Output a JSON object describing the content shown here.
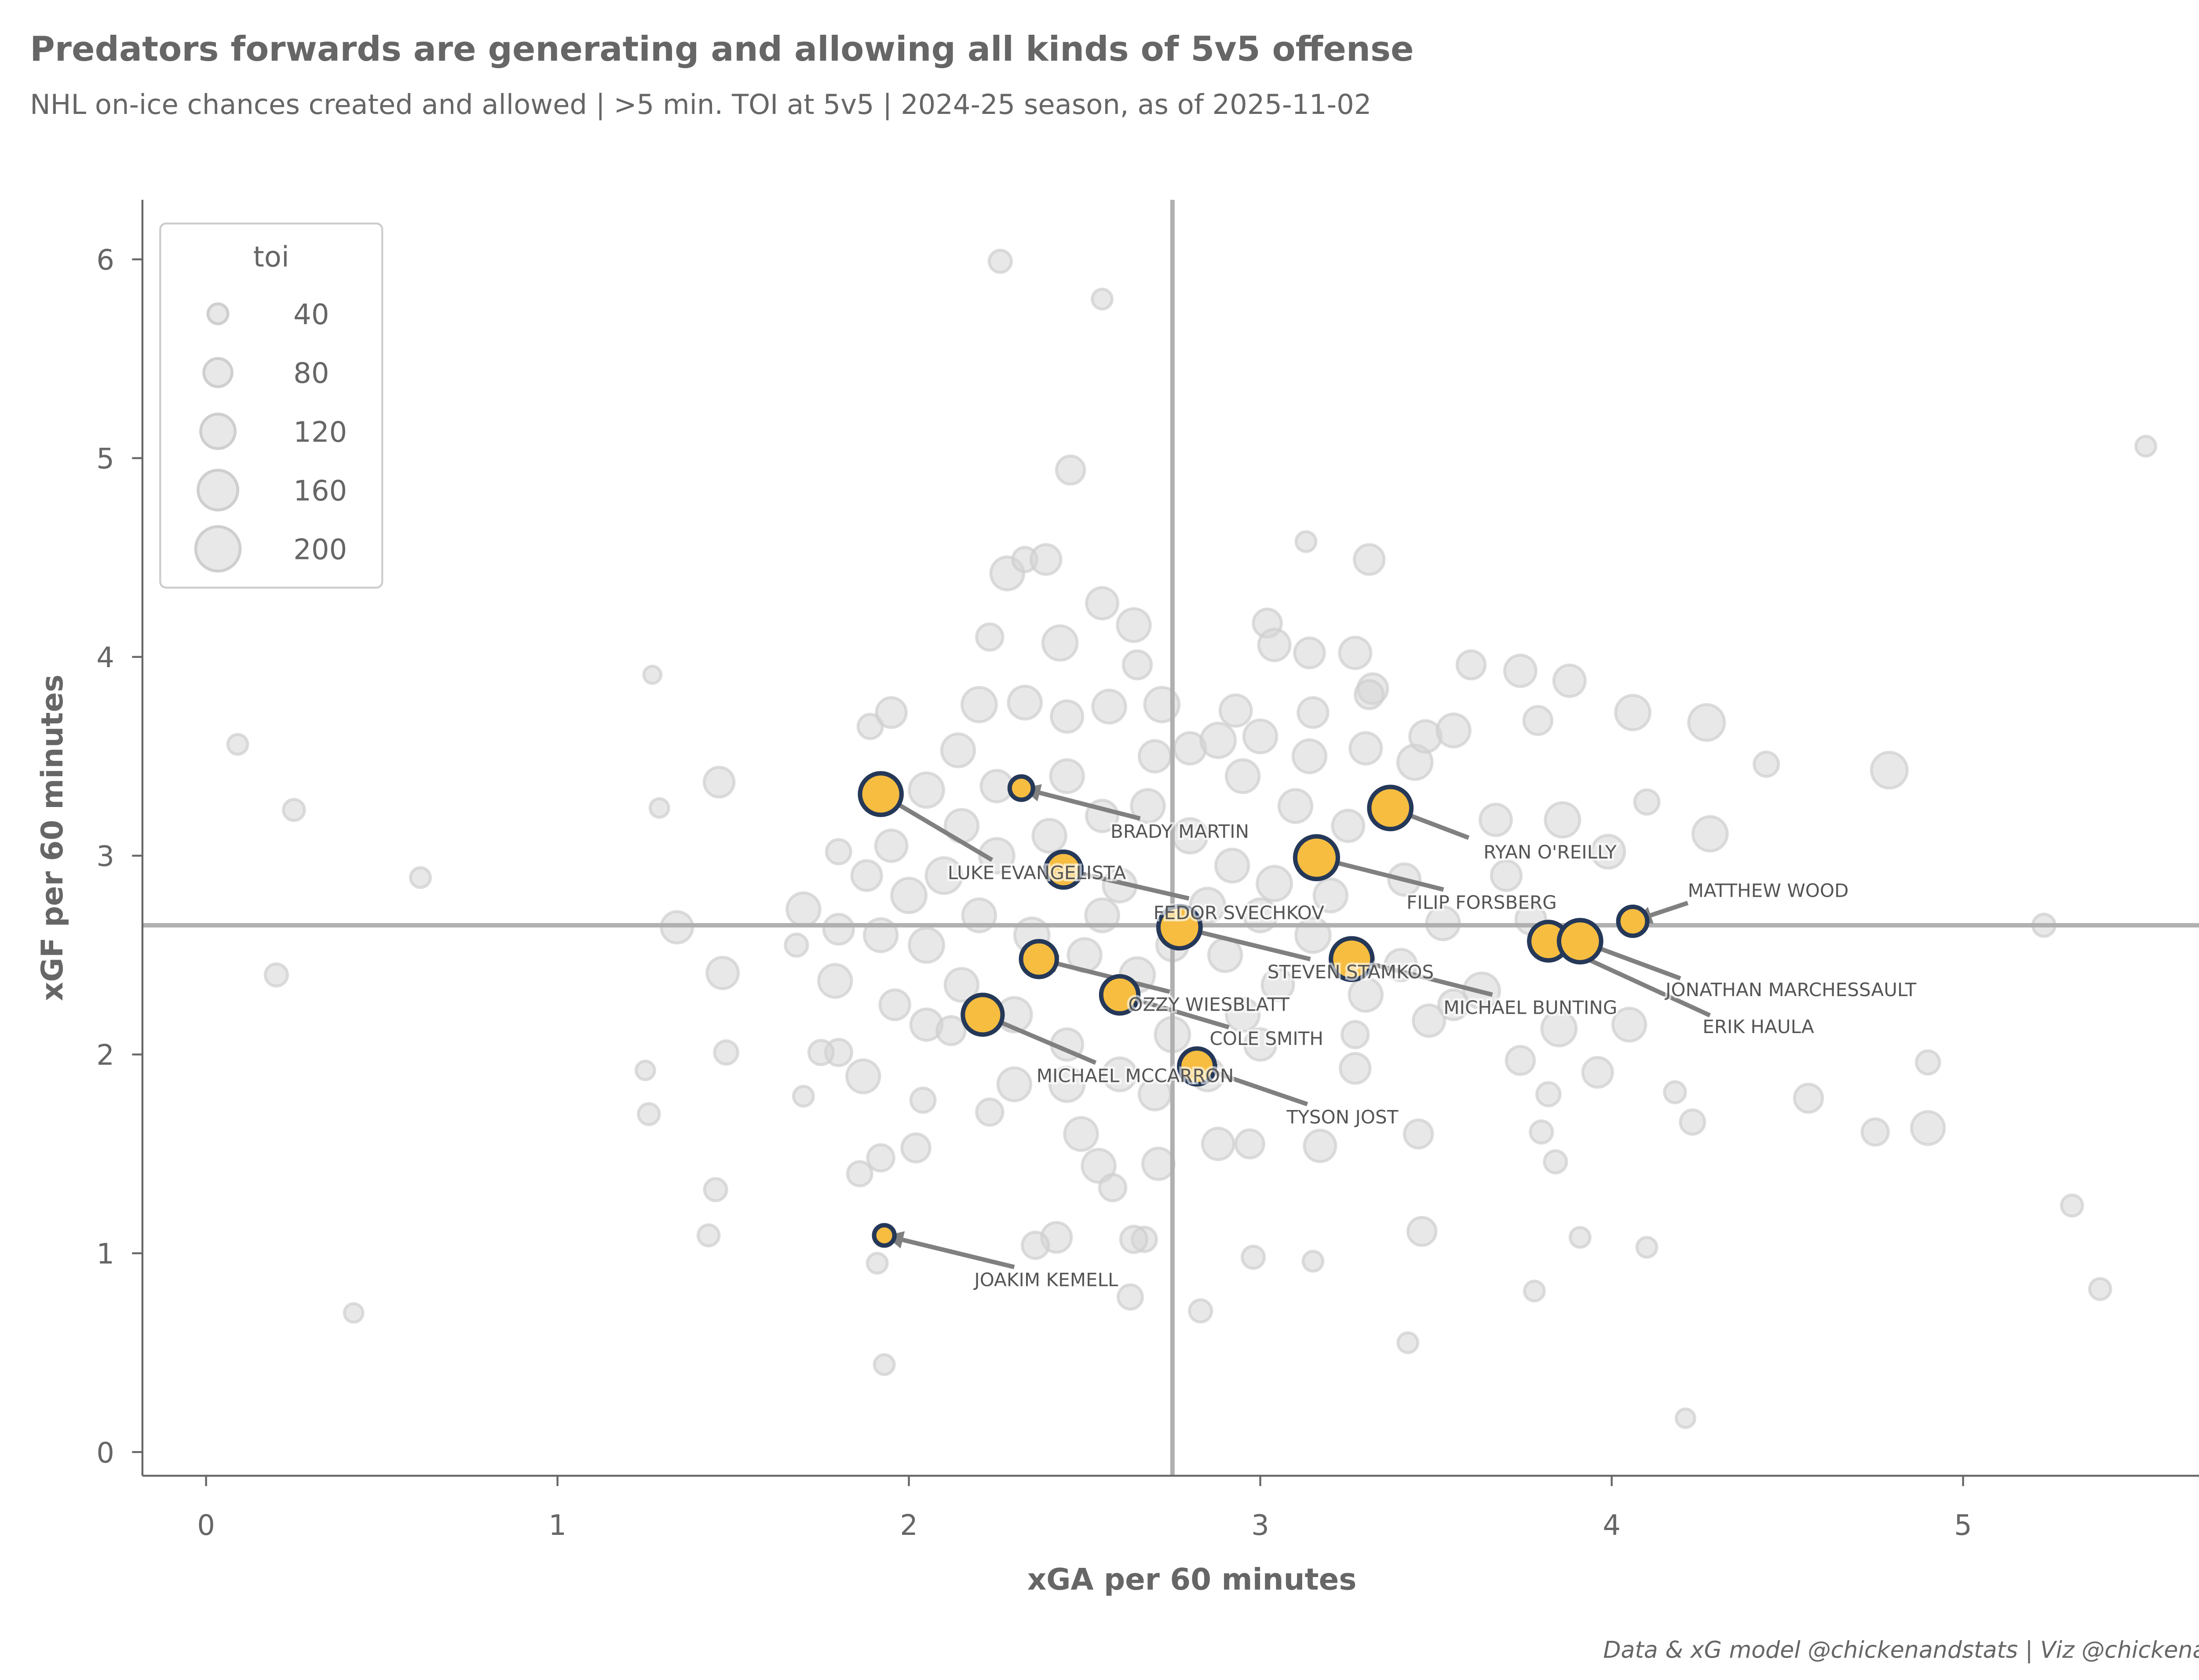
{
  "chart_data": {
    "type": "scatter",
    "title": "Predators forwards are generating and allowing all kinds of 5v5 offense",
    "subtitle": "NHL on-ice chances created and allowed | >5 min. TOI at 5v5 | 2024-25 season, as of 2025-11-02",
    "xlabel": "xGA per 60 minutes",
    "ylabel": "xGF per 60 minutes",
    "xlim": [
      -0.18,
      5.8
    ],
    "ylim": [
      -0.12,
      6.28
    ],
    "xticks": [
      "0",
      "1",
      "2",
      "3",
      "4",
      "5"
    ],
    "yticks": [
      "0",
      "1",
      "2",
      "3",
      "4",
      "5",
      "6"
    ],
    "median_x": 2.75,
    "median_y": 2.65,
    "legend": {
      "title": "toi",
      "placement": "top-left",
      "sizes": [
        "40",
        "80",
        "120",
        "160",
        "200"
      ]
    },
    "footer": "Data & xG model @chickenandstats | Viz @chickenandstats",
    "colors": {
      "highlight": "#f6bd41",
      "highlight_edge": "#253858",
      "other": "#d6d6d6",
      "text": "#666666",
      "arrow": "#808080"
    },
    "highlighted": [
      {
        "name": "LUKE EVANGELISTA",
        "xga": 1.92,
        "xgf": 3.31,
        "toi": 175
      },
      {
        "name": "BRADY MARTIN",
        "xga": 2.32,
        "xgf": 3.34,
        "toi": 55
      },
      {
        "name": "RYAN O'REILLY",
        "xga": 3.37,
        "xgf": 3.24,
        "toi": 180
      },
      {
        "name": "FILIP FORSBERG",
        "xga": 3.16,
        "xgf": 2.99,
        "toi": 185
      },
      {
        "name": "FEDOR SVECHKOV",
        "xga": 2.44,
        "xgf": 2.93,
        "toi": 130
      },
      {
        "name": "MATTHEW WOOD",
        "xga": 4.06,
        "xgf": 2.67,
        "toi": 85
      },
      {
        "name": "ERIK HAULA",
        "xga": 3.82,
        "xgf": 2.57,
        "toi": 150
      },
      {
        "name": "JONATHAN MARCHESSAULT",
        "xga": 3.91,
        "xgf": 2.57,
        "toi": 180
      },
      {
        "name": "STEVEN STAMKOS",
        "xga": 2.77,
        "xgf": 2.64,
        "toi": 180
      },
      {
        "name": "MICHAEL BUNTING",
        "xga": 3.26,
        "xgf": 2.48,
        "toi": 175
      },
      {
        "name": "OZZY WIESBLATT",
        "xga": 2.37,
        "xgf": 2.48,
        "toi": 130
      },
      {
        "name": "COLE SMITH",
        "xga": 2.6,
        "xgf": 2.3,
        "toi": 140
      },
      {
        "name": "MICHAEL MCCARRON",
        "xga": 2.21,
        "xgf": 2.2,
        "toi": 160
      },
      {
        "name": "TYSON JOST",
        "xga": 2.82,
        "xgf": 1.94,
        "toi": 130
      },
      {
        "name": "JOAKIM KEMELL",
        "xga": 1.93,
        "xgf": 1.09,
        "toi": 42
      }
    ],
    "others": [
      [
        0.09,
        3.56,
        40
      ],
      [
        0.25,
        3.23,
        45
      ],
      [
        0.2,
        2.4,
        50
      ],
      [
        0.61,
        2.89,
        40
      ],
      [
        0.42,
        0.7,
        35
      ],
      [
        1.27,
        3.91,
        30
      ],
      [
        1.29,
        3.24,
        35
      ],
      [
        1.46,
        3.37,
        90
      ],
      [
        1.34,
        2.64,
        100
      ],
      [
        1.47,
        2.41,
        100
      ],
      [
        1.25,
        1.92,
        35
      ],
      [
        1.26,
        1.7,
        45
      ],
      [
        1.48,
        2.01,
        55
      ],
      [
        1.45,
        1.32,
        50
      ],
      [
        1.43,
        1.09,
        45
      ],
      [
        1.93,
        0.44,
        40
      ],
      [
        1.91,
        0.95,
        40
      ],
      [
        2.26,
        5.99,
        50
      ],
      [
        2.55,
        5.8,
        40
      ],
      [
        2.46,
        4.94,
        80
      ],
      [
        2.28,
        4.42,
        110
      ],
      [
        2.33,
        4.49,
        60
      ],
      [
        2.39,
        4.49,
        90
      ],
      [
        2.55,
        4.27,
        100
      ],
      [
        2.64,
        4.16,
        110
      ],
      [
        2.23,
        4.1,
        70
      ],
      [
        2.43,
        4.07,
        120
      ],
      [
        2.65,
        3.96,
        80
      ],
      [
        3.13,
        4.58,
        40
      ],
      [
        3.31,
        4.49,
        90
      ],
      [
        3.02,
        4.17,
        80
      ],
      [
        3.04,
        4.06,
        100
      ],
      [
        3.14,
        4.02,
        90
      ],
      [
        3.27,
        4.02,
        100
      ],
      [
        3.32,
        3.84,
        90
      ],
      [
        3.31,
        3.81,
        80
      ],
      [
        3.6,
        3.96,
        80
      ],
      [
        3.74,
        3.93,
        100
      ],
      [
        3.88,
        3.88,
        100
      ],
      [
        3.79,
        3.68,
        80
      ],
      [
        4.06,
        3.72,
        120
      ],
      [
        4.27,
        3.67,
        130
      ],
      [
        4.44,
        3.46,
        60
      ],
      [
        4.79,
        3.43,
        130
      ],
      [
        4.1,
        3.27,
        60
      ],
      [
        4.28,
        3.11,
        120
      ],
      [
        5.52,
        5.06,
        40
      ],
      [
        5.23,
        2.65,
        50
      ],
      [
        4.9,
        1.96,
        55
      ],
      [
        4.9,
        1.63,
        110
      ],
      [
        4.75,
        1.61,
        70
      ],
      [
        4.56,
        1.78,
        80
      ],
      [
        4.23,
        1.66,
        60
      ],
      [
        4.18,
        1.81,
        45
      ],
      [
        4.1,
        1.03,
        40
      ],
      [
        3.91,
        1.08,
        40
      ],
      [
        3.78,
        0.81,
        40
      ],
      [
        3.42,
        0.55,
        40
      ],
      [
        4.21,
        0.17,
        35
      ],
      [
        5.31,
        1.24,
        45
      ],
      [
        5.39,
        0.82,
        45
      ],
      [
        3.46,
        1.11,
        80
      ],
      [
        3.15,
        0.96,
        40
      ],
      [
        2.98,
        0.98,
        50
      ],
      [
        2.83,
        0.71,
        50
      ],
      [
        2.63,
        0.78,
        60
      ],
      [
        2.67,
        1.07,
        60
      ],
      [
        2.64,
        1.07,
        70
      ],
      [
        2.42,
        1.08,
        90
      ],
      [
        2.36,
        1.04,
        70
      ],
      [
        3.63,
        2.32,
        130
      ],
      [
        3.85,
        2.13,
        120
      ],
      [
        4.05,
        2.15,
        110
      ],
      [
        3.55,
        2.25,
        90
      ],
      [
        3.48,
        2.17,
        100
      ],
      [
        3.74,
        1.97,
        80
      ],
      [
        3.96,
        1.91,
        90
      ],
      [
        3.84,
        1.46,
        50
      ],
      [
        3.8,
        1.61,
        50
      ],
      [
        3.82,
        1.8,
        55
      ],
      [
        3.45,
        1.6,
        80
      ],
      [
        3.27,
        2.1,
        70
      ],
      [
        3.27,
        1.93,
        90
      ],
      [
        3.17,
        1.54,
        100
      ],
      [
        2.97,
        1.55,
        80
      ],
      [
        2.88,
        1.55,
        100
      ],
      [
        2.71,
        1.45,
        100
      ],
      [
        2.54,
        1.44,
        110
      ],
      [
        2.58,
        1.33,
        70
      ],
      [
        2.49,
        1.6,
        110
      ],
      [
        2.23,
        1.71,
        70
      ],
      [
        2.02,
        1.53,
        80
      ],
      [
        1.92,
        1.48,
        70
      ],
      [
        1.86,
        1.4,
        60
      ],
      [
        2.04,
        1.77,
        60
      ],
      [
        1.7,
        1.79,
        40
      ],
      [
        1.8,
        2.01,
        70
      ],
      [
        1.87,
        1.89,
        110
      ],
      [
        1.79,
        2.37,
        110
      ],
      [
        1.68,
        2.55,
        50
      ],
      [
        1.7,
        2.73,
        110
      ],
      [
        1.8,
        2.63,
        90
      ],
      [
        1.8,
        3.02,
        60
      ],
      [
        1.89,
        3.65,
        60
      ],
      [
        1.95,
        3.72,
        90
      ],
      [
        2.05,
        3.33,
        120
      ],
      [
        2.14,
        3.53,
        110
      ],
      [
        2.2,
        3.76,
        120
      ],
      [
        2.33,
        3.77,
        110
      ],
      [
        2.45,
        3.7,
        100
      ],
      [
        2.57,
        3.75,
        110
      ],
      [
        2.72,
        3.76,
        120
      ],
      [
        2.8,
        3.54,
        100
      ],
      [
        2.88,
        3.58,
        120
      ],
      [
        2.93,
        3.73,
        100
      ],
      [
        3.0,
        3.6,
        110
      ],
      [
        3.15,
        3.72,
        90
      ],
      [
        3.14,
        3.5,
        110
      ],
      [
        3.3,
        3.54,
        100
      ],
      [
        3.44,
        3.47,
        120
      ],
      [
        3.47,
        3.6,
        100
      ],
      [
        3.55,
        3.63,
        110
      ],
      [
        3.67,
        3.18,
        100
      ],
      [
        3.86,
        3.18,
        120
      ],
      [
        3.99,
        3.02,
        110
      ],
      [
        3.7,
        2.9,
        90
      ],
      [
        3.77,
        2.68,
        90
      ],
      [
        3.52,
        2.66,
        110
      ],
      [
        3.41,
        2.88,
        100
      ],
      [
        3.2,
        2.8,
        110
      ],
      [
        3.04,
        2.86,
        120
      ],
      [
        2.92,
        2.95,
        110
      ],
      [
        2.8,
        3.1,
        120
      ],
      [
        2.68,
        3.25,
        110
      ],
      [
        2.55,
        3.2,
        100
      ],
      [
        2.4,
        3.1,
        110
      ],
      [
        2.25,
        3.0,
        120
      ],
      [
        2.1,
        2.9,
        130
      ],
      [
        2.0,
        2.8,
        120
      ],
      [
        1.92,
        2.6,
        110
      ],
      [
        2.05,
        2.55,
        120
      ],
      [
        2.2,
        2.7,
        110
      ],
      [
        2.35,
        2.6,
        120
      ],
      [
        2.5,
        2.5,
        110
      ],
      [
        2.65,
        2.4,
        120
      ],
      [
        2.9,
        2.5,
        110
      ],
      [
        3.05,
        2.35,
        100
      ],
      [
        3.15,
        2.6,
        120
      ],
      [
        2.95,
        2.2,
        110
      ],
      [
        2.75,
        2.1,
        120
      ],
      [
        2.6,
        1.9,
        110
      ],
      [
        2.45,
        2.05,
        100
      ],
      [
        2.3,
        2.2,
        120
      ],
      [
        2.15,
        2.35,
        110
      ],
      [
        2.05,
        2.15,
        100
      ],
      [
        2.3,
        1.85,
        110
      ],
      [
        2.45,
        1.85,
        120
      ],
      [
        2.7,
        1.8,
        100
      ],
      [
        2.85,
        1.9,
        110
      ],
      [
        3.0,
        2.05,
        100
      ],
      [
        3.3,
        2.3,
        110
      ],
      [
        3.4,
        2.45,
        100
      ],
      [
        2.85,
        2.75,
        120
      ],
      [
        2.6,
        2.85,
        110
      ],
      [
        2.45,
        3.4,
        110
      ],
      [
        2.25,
        3.35,
        100
      ],
      [
        2.15,
        3.15,
        110
      ],
      [
        1.95,
        3.05,
        100
      ],
      [
        1.88,
        2.9,
        90
      ],
      [
        3.1,
        3.25,
        110
      ],
      [
        3.25,
        3.15,
        100
      ],
      [
        2.95,
        3.4,
        110
      ],
      [
        2.7,
        3.5,
        100
      ],
      [
        2.55,
        2.7,
        110
      ],
      [
        2.75,
        2.55,
        100
      ],
      [
        3.0,
        2.7,
        110
      ],
      [
        1.96,
        2.25,
        90
      ],
      [
        2.12,
        2.12,
        80
      ],
      [
        1.75,
        2.01,
        60
      ]
    ]
  }
}
